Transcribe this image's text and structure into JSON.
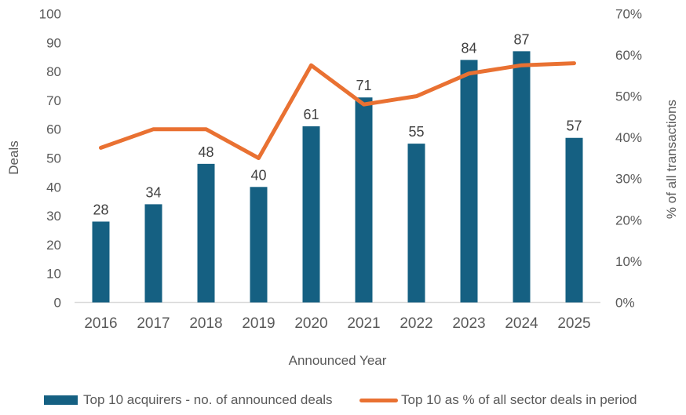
{
  "chart_data": {
    "type": "combo",
    "categories": [
      "2016",
      "2017",
      "2018",
      "2019",
      "2020",
      "2021",
      "2022",
      "2023",
      "2024",
      "2025"
    ],
    "series": [
      {
        "name": "Top 10 acquirers - no. of announced deals",
        "type": "bar",
        "axis": "left",
        "color": "#156082",
        "values": [
          28,
          34,
          48,
          40,
          61,
          71,
          55,
          84,
          87,
          57
        ]
      },
      {
        "name": "Top 10 as % of all sector deals in period",
        "type": "line",
        "axis": "right",
        "color": "#E97132",
        "unit": "%",
        "values": [
          37.5,
          42,
          42,
          35,
          57.5,
          48,
          50,
          55.5,
          57.5,
          58
        ]
      }
    ],
    "left_axis": {
      "title": "Deals",
      "min": 0,
      "max": 100,
      "step": 10,
      "tick_labels": [
        "0",
        "10",
        "20",
        "30",
        "40",
        "50",
        "60",
        "70",
        "80",
        "90",
        "100"
      ]
    },
    "right_axis": {
      "title": "% of all transactions",
      "min": 0,
      "max": 70,
      "step": 10,
      "tick_labels": [
        "0%",
        "10%",
        "20%",
        "30%",
        "40%",
        "50%",
        "60%",
        "70%"
      ]
    },
    "x_axis": {
      "title": "Announced Year"
    },
    "grid": false,
    "legend_position": "bottom",
    "data_labels_shown_for": "bar"
  },
  "style": {
    "bar_color": "#156082",
    "line_color": "#E97132",
    "tick_label_color": "#595959",
    "data_label_color": "#404040",
    "axis_line_color": "#D9D9D9",
    "background": "#FFFFFF"
  }
}
